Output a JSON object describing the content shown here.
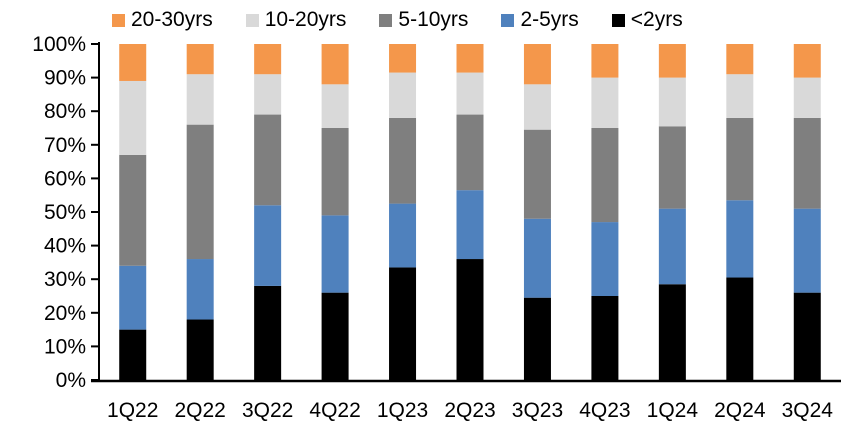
{
  "chart_data": {
    "type": "bar",
    "stacked": true,
    "percent_stacked": true,
    "title": "",
    "xlabel": "",
    "ylabel": "",
    "ylim": [
      0,
      100
    ],
    "grid": false,
    "legend_position": "top",
    "y_tick_labels": [
      "0%",
      "10%",
      "20%",
      "30%",
      "40%",
      "50%",
      "60%",
      "70%",
      "80%",
      "90%",
      "100%"
    ],
    "categories": [
      "1Q22",
      "2Q22",
      "3Q22",
      "4Q22",
      "1Q23",
      "2Q23",
      "3Q23",
      "4Q23",
      "1Q24",
      "2Q24",
      "3Q24"
    ],
    "series": [
      {
        "name": "<2yrs",
        "color": "#000000",
        "values": [
          15,
          18,
          28,
          26,
          33.5,
          36,
          24.5,
          25,
          28.5,
          30.5,
          26
        ]
      },
      {
        "name": "2-5yrs",
        "color": "#4F81BD",
        "values": [
          19,
          18,
          24,
          23,
          19,
          20.5,
          23.5,
          22,
          22.5,
          23,
          25
        ]
      },
      {
        "name": "5-10yrs",
        "color": "#7F7F7F",
        "values": [
          33,
          40,
          27,
          26,
          25.5,
          22.5,
          26.5,
          28,
          24.5,
          24.5,
          27
        ]
      },
      {
        "name": "10-20yrs",
        "color": "#D9D9D9",
        "values": [
          22,
          15,
          12,
          13,
          13.5,
          12.5,
          13.5,
          15,
          14.5,
          13,
          12
        ]
      },
      {
        "name": "20-30yrs",
        "color": "#F4974B",
        "values": [
          11,
          9,
          9,
          12,
          8.5,
          8.5,
          12,
          10,
          10,
          9,
          10
        ]
      }
    ],
    "legend_order": [
      "20-30yrs",
      "10-20yrs",
      "5-10yrs",
      "2-5yrs",
      "<2yrs"
    ],
    "axis_color": "#000000"
  }
}
